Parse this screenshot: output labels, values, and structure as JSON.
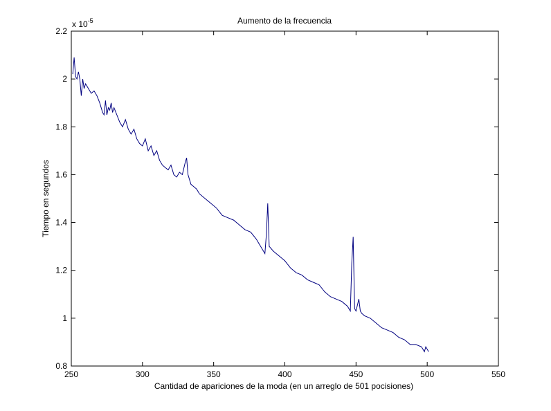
{
  "chart_data": {
    "type": "line",
    "title": "Aumento de la frecuencia",
    "xlabel": "Cantidad de apariciones de la moda (en un arreglo de 501 pocisiones)",
    "ylabel": "Tiempo en segundos",
    "y_scale_label": "x 10",
    "y_scale_exponent": "-5",
    "xlim": [
      250,
      550
    ],
    "ylim": [
      0.8,
      2.2
    ],
    "xticks": [
      "250",
      "300",
      "350",
      "400",
      "450",
      "500",
      "550"
    ],
    "yticks": [
      "0.8",
      "1",
      "1.2",
      "1.4",
      "1.6",
      "1.8",
      "2",
      "2.2"
    ],
    "grid": false,
    "line_color": "#000080",
    "series": [
      {
        "x": [
          251,
          252,
          253,
          254,
          255,
          256,
          257,
          258,
          259,
          260,
          262,
          264,
          266,
          268,
          270,
          272,
          273,
          274,
          275,
          276,
          277,
          278,
          279,
          280,
          282,
          284,
          286,
          288,
          290,
          292,
          294,
          296,
          298,
          300,
          302,
          304,
          306,
          308,
          310,
          312,
          314,
          316,
          318,
          320,
          322,
          324,
          326,
          328,
          330,
          331,
          332,
          334,
          336,
          338,
          340,
          344,
          348,
          352,
          356,
          360,
          364,
          368,
          372,
          376,
          380,
          382,
          384,
          386,
          387,
          388,
          389,
          392,
          396,
          400,
          404,
          408,
          412,
          416,
          420,
          424,
          428,
          432,
          436,
          440,
          444,
          446,
          447,
          448,
          449,
          450,
          452,
          453,
          454,
          456,
          460,
          464,
          468,
          472,
          476,
          480,
          484,
          486,
          488,
          492,
          496,
          498,
          499,
          500,
          501
        ],
        "y": [
          2.02,
          2.09,
          2.01,
          2.0,
          2.03,
          2.0,
          1.93,
          2.0,
          1.96,
          1.98,
          1.96,
          1.94,
          1.95,
          1.93,
          1.9,
          1.86,
          1.85,
          1.91,
          1.85,
          1.88,
          1.87,
          1.9,
          1.86,
          1.88,
          1.85,
          1.82,
          1.8,
          1.83,
          1.79,
          1.77,
          1.79,
          1.75,
          1.73,
          1.72,
          1.75,
          1.7,
          1.72,
          1.68,
          1.7,
          1.66,
          1.64,
          1.63,
          1.62,
          1.64,
          1.6,
          1.59,
          1.61,
          1.6,
          1.65,
          1.67,
          1.6,
          1.56,
          1.55,
          1.54,
          1.52,
          1.5,
          1.48,
          1.46,
          1.43,
          1.42,
          1.41,
          1.39,
          1.37,
          1.36,
          1.33,
          1.31,
          1.29,
          1.27,
          1.35,
          1.48,
          1.3,
          1.28,
          1.26,
          1.24,
          1.21,
          1.19,
          1.18,
          1.16,
          1.15,
          1.14,
          1.11,
          1.09,
          1.08,
          1.07,
          1.05,
          1.03,
          1.23,
          1.34,
          1.04,
          1.03,
          1.08,
          1.03,
          1.02,
          1.01,
          1.0,
          0.98,
          0.96,
          0.95,
          0.94,
          0.92,
          0.91,
          0.9,
          0.89,
          0.89,
          0.88,
          0.86,
          0.88,
          0.87,
          0.86
        ]
      }
    ]
  }
}
